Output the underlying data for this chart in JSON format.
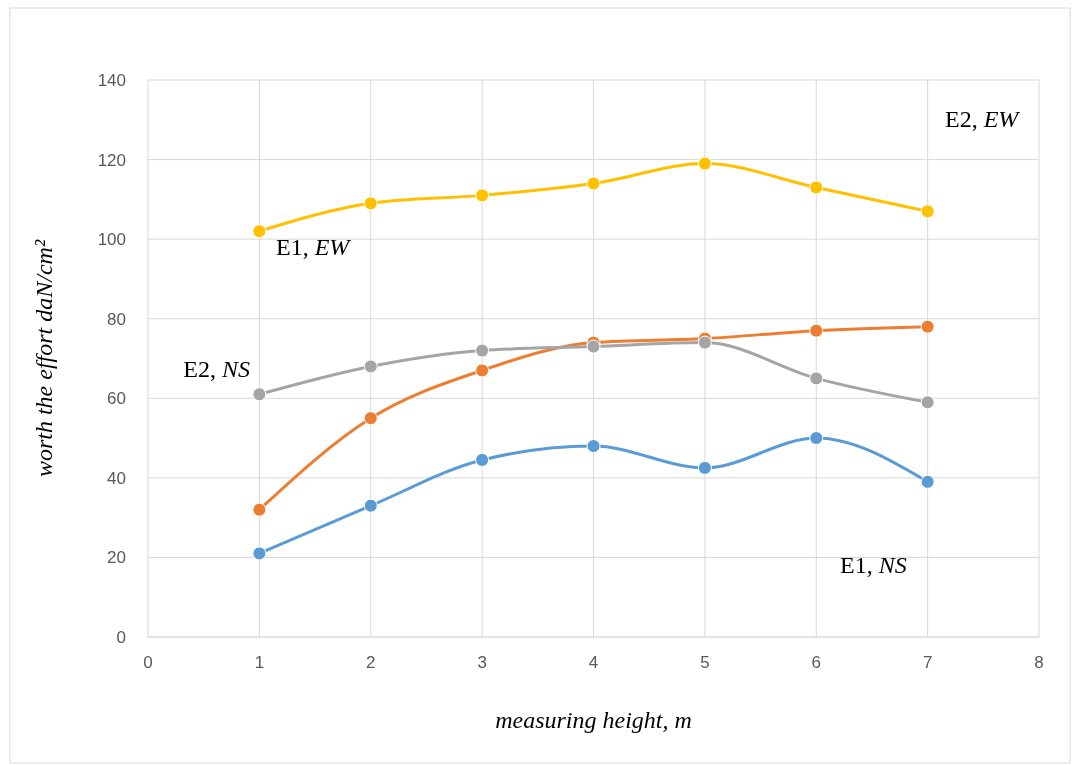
{
  "chart_data": {
    "type": "line",
    "xlabel": "measuring height, m",
    "ylabel": "worth the effort daN/cm²",
    "x": [
      1,
      2,
      3,
      4,
      5,
      6,
      7
    ],
    "series": [
      {
        "color": "#5b9bd5",
        "values": [
          21,
          33,
          44.5,
          48,
          42.5,
          50,
          39
        ]
      },
      {
        "color": "#ffc000",
        "values": [
          102,
          109,
          111,
          114,
          119,
          113,
          107
        ]
      },
      {
        "color": "#ed7d31",
        "values": [
          32,
          55,
          67,
          74,
          75,
          77,
          78
        ]
      },
      {
        "color": "#a5a5a5",
        "values": [
          61,
          68,
          72,
          73,
          74,
          65,
          59
        ]
      }
    ],
    "annotations": [
      "E2, EW",
      "E1, EW",
      "E2, NS",
      "E1, NS"
    ],
    "xlim": [
      0,
      8
    ],
    "xticks": [
      0,
      1,
      2,
      3,
      4,
      5,
      6,
      7,
      8
    ],
    "ylim": [
      0,
      140
    ],
    "yticks": [
      0,
      20,
      40,
      60,
      80,
      100,
      120,
      140
    ],
    "grid": true,
    "marker": "circle",
    "line_style": "solid"
  }
}
